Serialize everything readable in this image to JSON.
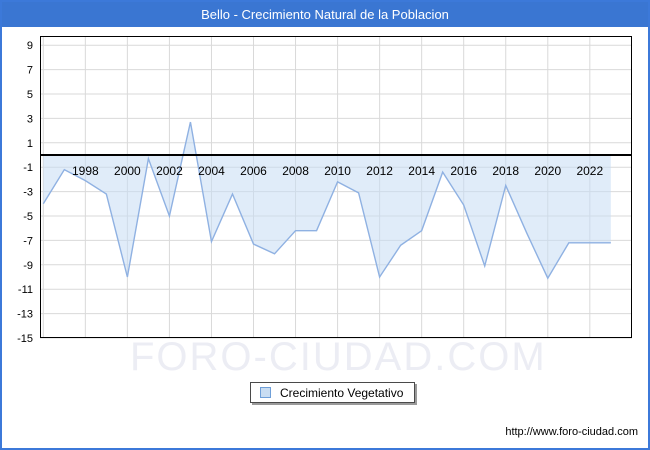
{
  "window": {
    "title": "Bello - Crecimiento Natural de la Poblacion"
  },
  "colors": {
    "header_bg": "#3a76d2",
    "outer_border": "#3c79d9",
    "series_line": "#8fb1e2",
    "series_fill": "#c7dcf4",
    "gridline": "#d9d9d9",
    "axis": "#000000",
    "watermark": "#ecedf4",
    "legend_swatch_border": "#6f9fd8",
    "legend_swatch_fill": "#c9ddf2"
  },
  "legend": {
    "label": "Crecimiento Vegetativo"
  },
  "watermark_text": "FORO-CIUDAD.COM",
  "footer": {
    "url": "http://www.foro-ciudad.com"
  },
  "chart_data": {
    "type": "area",
    "title": "Bello - Crecimiento Natural de la Poblacion",
    "series_name": "Crecimiento Vegetativo",
    "x": [
      1996,
      1997,
      1998,
      1999,
      2000,
      2001,
      2002,
      2003,
      2004,
      2005,
      2006,
      2007,
      2008,
      2009,
      2010,
      2011,
      2012,
      2013,
      2014,
      2015,
      2016,
      2017,
      2018,
      2019,
      2020,
      2021,
      2022,
      2023
    ],
    "values": [
      -4.0,
      -1.2,
      -2.1,
      -3.2,
      -10.0,
      -0.3,
      -5.0,
      2.7,
      -7.1,
      -3.2,
      -7.3,
      -8.1,
      -6.2,
      -6.2,
      -2.2,
      -3.1,
      -10.0,
      -7.4,
      -6.2,
      -1.4,
      -4.1,
      -9.1,
      -2.5,
      -6.4,
      -10.1,
      -7.2,
      -7.2,
      -7.2
    ],
    "baseline": 0,
    "ylim": [
      -15,
      9.75
    ],
    "yticks": [
      9,
      7,
      5,
      3,
      1,
      -1,
      -3,
      -5,
      -7,
      -9,
      -11,
      -13,
      -15
    ],
    "x_gridlines": [
      1996,
      1998,
      2000,
      2002,
      2004,
      2006,
      2008,
      2010,
      2012,
      2014,
      2016,
      2018,
      2020,
      2022
    ],
    "xtick_labels": [
      1998,
      2000,
      2002,
      2004,
      2006,
      2008,
      2010,
      2012,
      2014,
      2016,
      2018,
      2020,
      2022
    ],
    "grid": true,
    "legend_position": "bottom-center",
    "fill_to": "zero-baseline"
  }
}
